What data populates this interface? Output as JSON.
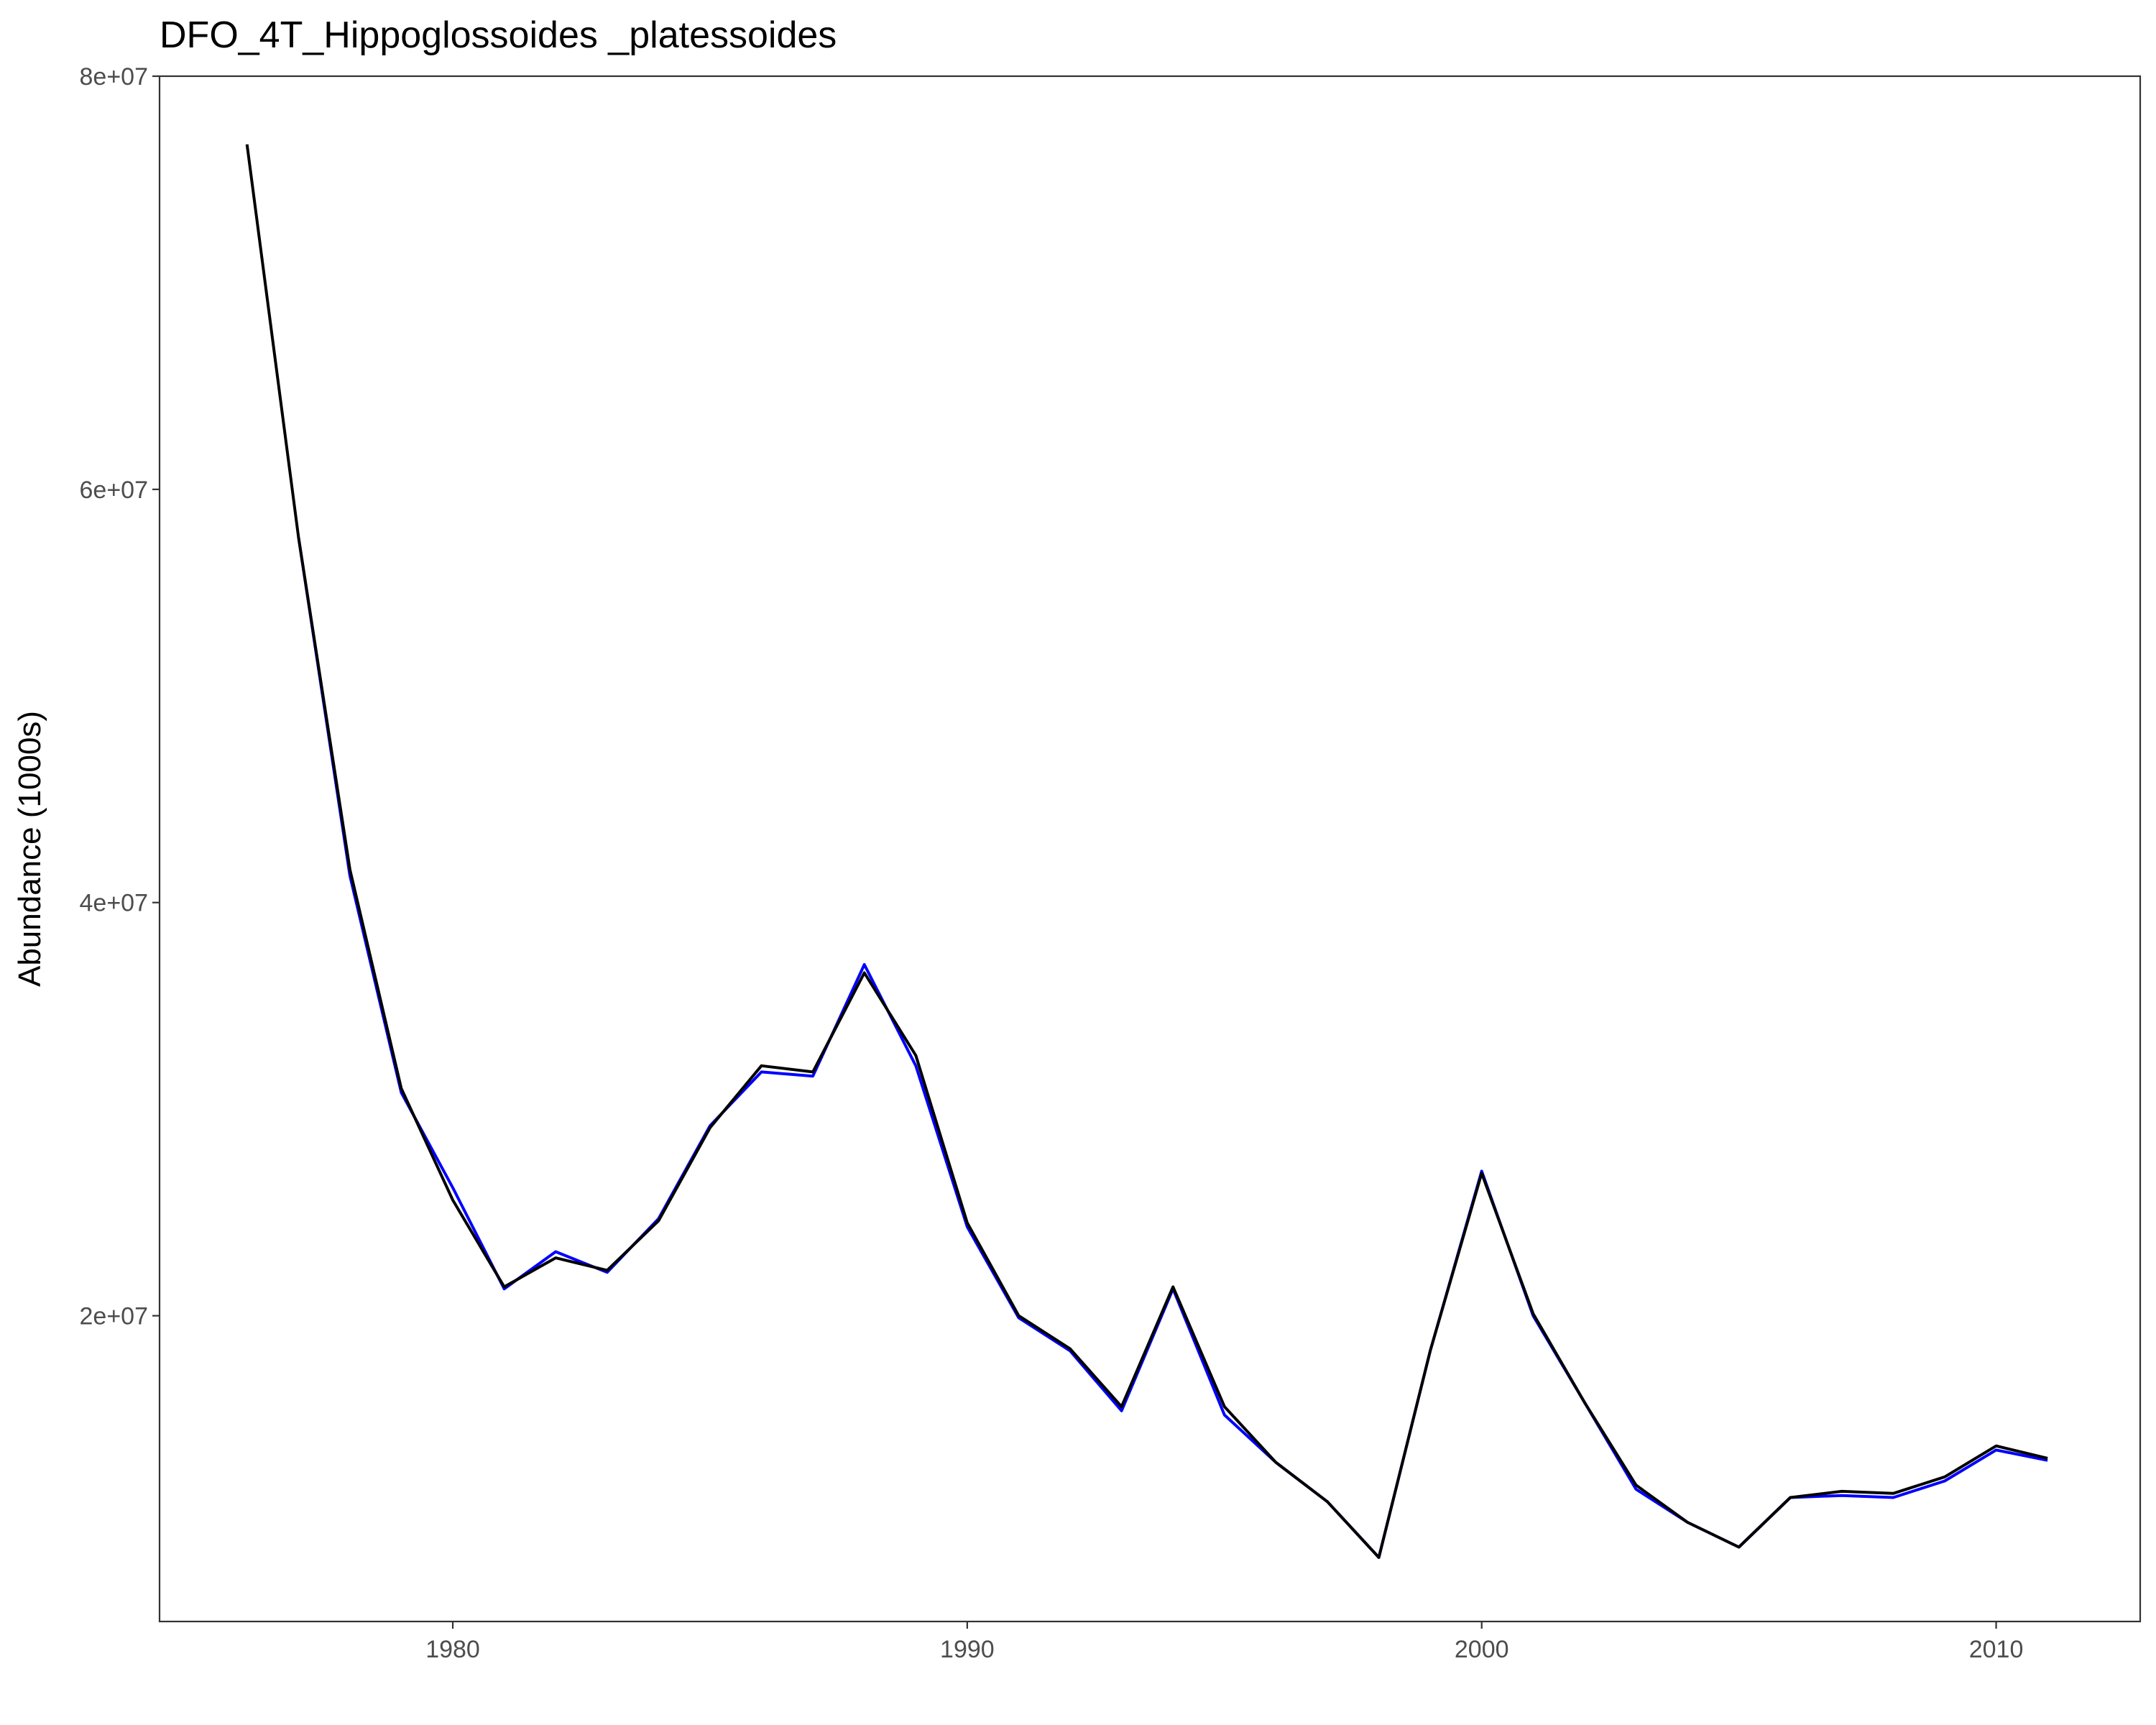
{
  "chart_data": {
    "type": "line",
    "title": "DFO_4T_Hippoglossoides _platessoides",
    "xlabel": "",
    "ylabel": "Abundance (1000s)",
    "xlim": [
      1974.3,
      2012.8
    ],
    "ylim": [
      5200000.0,
      80000000.0
    ],
    "x_ticks": [
      1980,
      1990,
      2000,
      2010
    ],
    "x_tick_labels": [
      "1980",
      "1990",
      "2000",
      "2010"
    ],
    "y_ticks": [
      20000000.0,
      40000000.0,
      60000000.0,
      80000000.0
    ],
    "y_tick_labels": [
      "2e+07",
      "4e+07",
      "6e+07",
      "8e+07"
    ],
    "grid": false,
    "legend": "none",
    "series": [
      {
        "color": "#0000ff",
        "x": [
          1977,
          1978,
          1979,
          1980,
          1981,
          1982,
          1983,
          1984,
          1985,
          1986,
          1987,
          1988,
          1989,
          1990,
          1991,
          1992,
          1993,
          1994,
          1995,
          1996,
          1997,
          1998,
          1999,
          2000,
          2001,
          2002,
          2003,
          2004,
          2005,
          2006,
          2007,
          2008,
          2009,
          2010,
          2011
        ],
        "values": [
          57700000,
          41300000,
          30800000,
          26200000,
          21300000,
          23100000,
          22100000,
          24700000,
          29200000,
          31800000,
          31600000,
          37000000,
          32100000,
          24300000,
          19900000,
          18300000,
          15400000,
          21300000,
          15200000,
          12900000,
          11000000,
          8300000,
          18300000,
          27000000,
          20000000,
          15800000,
          11600000,
          10000000,
          8800000,
          11200000,
          11300000,
          11200000,
          12000000,
          13500000,
          13000000
        ]
      },
      {
        "color": "#000000",
        "x": [
          1976,
          1977,
          1978,
          1979,
          1980,
          1981,
          1982,
          1983,
          1984,
          1985,
          1986,
          1987,
          1988,
          1989,
          1990,
          1991,
          1992,
          1993,
          1994,
          1995,
          1996,
          1997,
          1998,
          1999,
          2000,
          2001,
          2002,
          2003,
          2004,
          2005,
          2006,
          2007,
          2008,
          2009,
          2010,
          2011
        ],
        "values": [
          76700000,
          57700000,
          41600000,
          31000000,
          25600000,
          21400000,
          22800000,
          22200000,
          24600000,
          29100000,
          32100000,
          31800000,
          36600000,
          32600000,
          24500000,
          20000000,
          18400000,
          15600000,
          21400000,
          15600000,
          12900000,
          11000000,
          8300000,
          18300000,
          26900000,
          20100000,
          15800000,
          11800000,
          10000000,
          8800000,
          11200000,
          11500000,
          11400000,
          12200000,
          13700000,
          13100000
        ]
      }
    ]
  }
}
